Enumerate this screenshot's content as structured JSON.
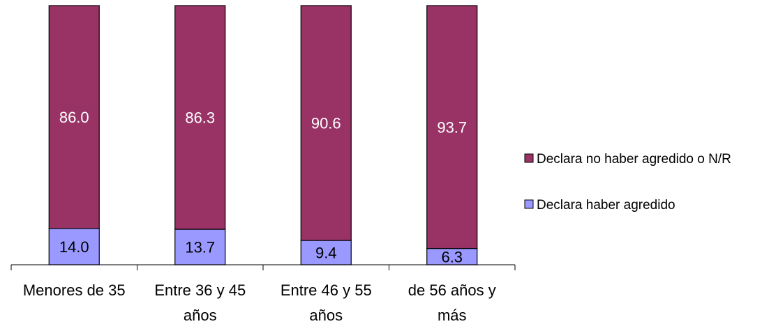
{
  "chart_data": {
    "type": "bar",
    "stacked": true,
    "percent_stacked": true,
    "categories": [
      [
        "Menores de 35"
      ],
      [
        "Entre 36 y 45",
        "años"
      ],
      [
        "Entre 46 y 55",
        "años"
      ],
      [
        "de 56 años y",
        "más"
      ]
    ],
    "series": [
      {
        "name": "Declara haber agredido",
        "values": [
          14.0,
          13.7,
          9.4,
          6.3
        ],
        "labels": [
          "14.0",
          "13.7",
          "9.4",
          "6.3"
        ],
        "color": "#9999ff",
        "label_color": "#000000"
      },
      {
        "name": "Declara no haber agredido o N/R",
        "values": [
          86.0,
          86.3,
          90.6,
          93.7
        ],
        "labels": [
          "86.0",
          "86.3",
          "90.6",
          "93.7"
        ],
        "color": "#993366",
        "label_color": "#ffffff"
      }
    ],
    "ylim": [
      0,
      100
    ],
    "xlabel": "",
    "ylabel": "",
    "title": "",
    "grid": false,
    "legend_position": "right",
    "legend_order": [
      "Declara no haber agredido o N/R",
      "Declara haber agredido"
    ]
  }
}
